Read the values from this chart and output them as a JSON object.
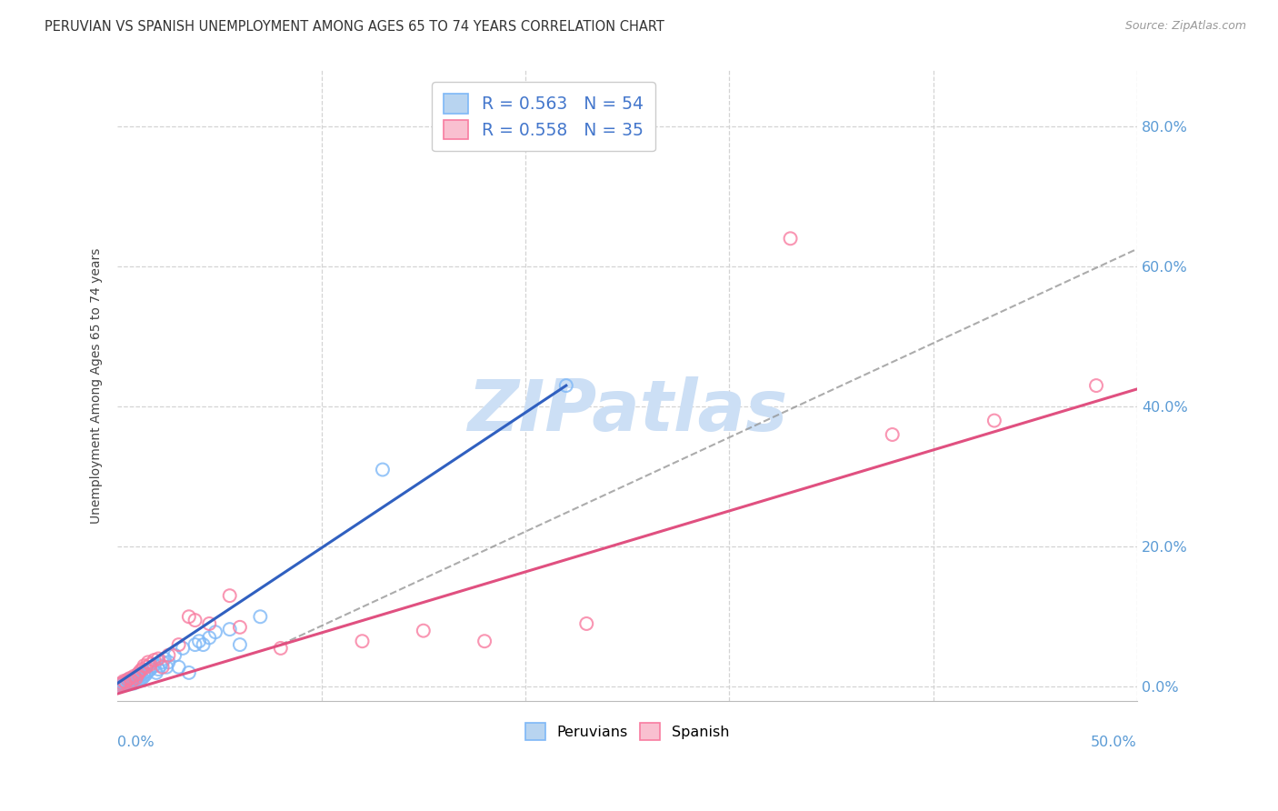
{
  "title": "PERUVIAN VS SPANISH UNEMPLOYMENT AMONG AGES 65 TO 74 YEARS CORRELATION CHART",
  "source": "Source: ZipAtlas.com",
  "ylabel": "Unemployment Among Ages 65 to 74 years",
  "ytick_values": [
    0.0,
    0.2,
    0.4,
    0.6,
    0.8
  ],
  "xlim": [
    0.0,
    0.5
  ],
  "ylim": [
    -0.02,
    0.88
  ],
  "legend_entries": [
    {
      "label": "R = 0.563   N = 54",
      "color": "#a8c8f0"
    },
    {
      "label": "R = 0.558   N = 35",
      "color": "#f9a8c0"
    }
  ],
  "peruvian_color": "#7eb8f7",
  "spanish_color": "#f87ca0",
  "watermark_color": "#ccdff5",
  "grid_color": "#d0d0d0",
  "background_color": "#ffffff",
  "blue_line_color": "#3060c0",
  "pink_line_color": "#e05080",
  "dash_line_color": "#909090",
  "peruvian_points": [
    [
      0.001,
      0.002
    ],
    [
      0.002,
      0.003
    ],
    [
      0.002,
      0.005
    ],
    [
      0.003,
      0.004
    ],
    [
      0.003,
      0.006
    ],
    [
      0.004,
      0.003
    ],
    [
      0.004,
      0.007
    ],
    [
      0.005,
      0.005
    ],
    [
      0.005,
      0.008
    ],
    [
      0.005,
      0.01
    ],
    [
      0.006,
      0.004
    ],
    [
      0.006,
      0.008
    ],
    [
      0.007,
      0.006
    ],
    [
      0.007,
      0.01
    ],
    [
      0.007,
      0.012
    ],
    [
      0.008,
      0.005
    ],
    [
      0.008,
      0.009
    ],
    [
      0.008,
      0.013
    ],
    [
      0.009,
      0.007
    ],
    [
      0.009,
      0.012
    ],
    [
      0.01,
      0.008
    ],
    [
      0.01,
      0.014
    ],
    [
      0.01,
      0.018
    ],
    [
      0.011,
      0.01
    ],
    [
      0.011,
      0.016
    ],
    [
      0.012,
      0.012
    ],
    [
      0.013,
      0.015
    ],
    [
      0.013,
      0.02
    ],
    [
      0.014,
      0.018
    ],
    [
      0.015,
      0.022
    ],
    [
      0.016,
      0.025
    ],
    [
      0.017,
      0.028
    ],
    [
      0.018,
      0.03
    ],
    [
      0.019,
      0.02
    ],
    [
      0.02,
      0.025
    ],
    [
      0.021,
      0.03
    ],
    [
      0.022,
      0.035
    ],
    [
      0.023,
      0.04
    ],
    [
      0.024,
      0.028
    ],
    [
      0.025,
      0.035
    ],
    [
      0.028,
      0.045
    ],
    [
      0.03,
      0.028
    ],
    [
      0.032,
      0.055
    ],
    [
      0.035,
      0.02
    ],
    [
      0.038,
      0.06
    ],
    [
      0.04,
      0.065
    ],
    [
      0.042,
      0.06
    ],
    [
      0.045,
      0.07
    ],
    [
      0.048,
      0.078
    ],
    [
      0.055,
      0.082
    ],
    [
      0.06,
      0.06
    ],
    [
      0.07,
      0.1
    ],
    [
      0.13,
      0.31
    ],
    [
      0.22,
      0.43
    ]
  ],
  "spanish_points": [
    [
      0.001,
      0.003
    ],
    [
      0.002,
      0.005
    ],
    [
      0.003,
      0.008
    ],
    [
      0.004,
      0.006
    ],
    [
      0.005,
      0.01
    ],
    [
      0.006,
      0.012
    ],
    [
      0.007,
      0.008
    ],
    [
      0.008,
      0.015
    ],
    [
      0.009,
      0.012
    ],
    [
      0.01,
      0.018
    ],
    [
      0.011,
      0.022
    ],
    [
      0.012,
      0.025
    ],
    [
      0.013,
      0.03
    ],
    [
      0.014,
      0.028
    ],
    [
      0.015,
      0.035
    ],
    [
      0.016,
      0.032
    ],
    [
      0.018,
      0.038
    ],
    [
      0.02,
      0.04
    ],
    [
      0.022,
      0.028
    ],
    [
      0.025,
      0.045
    ],
    [
      0.03,
      0.06
    ],
    [
      0.035,
      0.1
    ],
    [
      0.038,
      0.095
    ],
    [
      0.045,
      0.09
    ],
    [
      0.055,
      0.13
    ],
    [
      0.06,
      0.085
    ],
    [
      0.08,
      0.055
    ],
    [
      0.12,
      0.065
    ],
    [
      0.15,
      0.08
    ],
    [
      0.18,
      0.065
    ],
    [
      0.23,
      0.09
    ],
    [
      0.33,
      0.64
    ],
    [
      0.38,
      0.36
    ],
    [
      0.43,
      0.38
    ],
    [
      0.48,
      0.43
    ]
  ],
  "peruvian_line": {
    "x0": 0.0,
    "y0": 0.005,
    "x1": 0.22,
    "y1": 0.43
  },
  "spanish_line": {
    "x0": 0.0,
    "y0": -0.01,
    "x1": 0.5,
    "y1": 0.425
  },
  "dash_line": {
    "x0": 0.08,
    "y0": 0.06,
    "x1": 0.5,
    "y1": 0.625
  }
}
